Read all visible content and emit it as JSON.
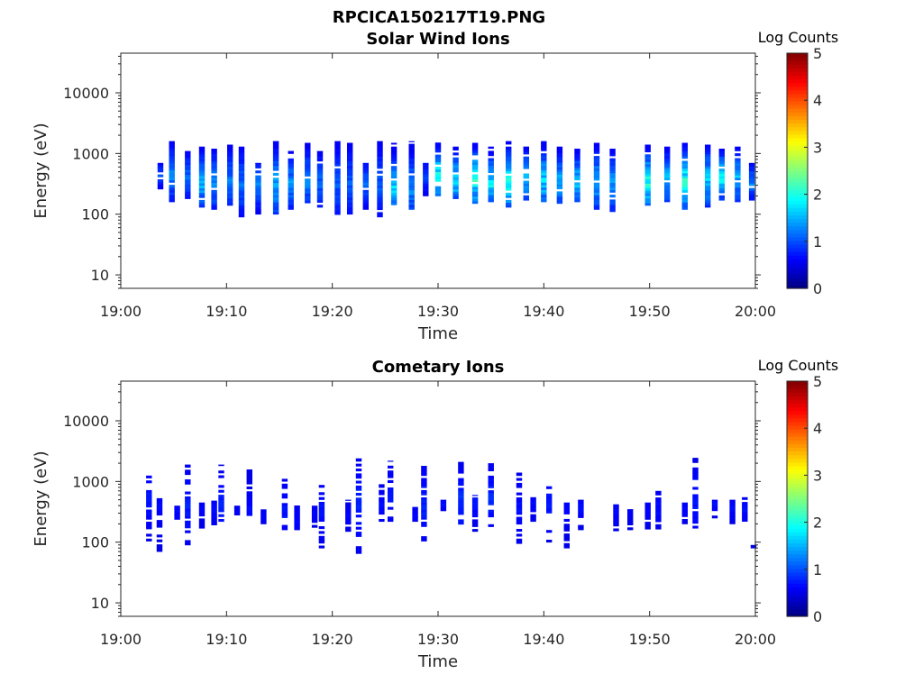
{
  "figure_title": "RPCICA150217T19.PNG",
  "chart_data": [
    {
      "type": "heatmap",
      "title": "Solar Wind Ions",
      "xlabel": "Time",
      "ylabel": "Energy (eV)",
      "x_scale": "time",
      "y_scale": "log",
      "xlim": [
        "19:00",
        "20:00"
      ],
      "ylim": [
        6,
        45000
      ],
      "x_ticks": [
        "19:00",
        "19:10",
        "19:20",
        "19:30",
        "19:40",
        "19:50",
        "20:00"
      ],
      "y_ticks": [
        10,
        100,
        1000,
        10000
      ],
      "y_tick_labels": [
        "10",
        "100",
        "1000",
        "10000"
      ],
      "colorbar": {
        "title": "Log Counts",
        "range": [
          0,
          5
        ],
        "ticks": [
          "0",
          "1",
          "2",
          "3",
          "4",
          "5"
        ],
        "colormap": "jet"
      },
      "scans": [
        {
          "time": "19:02:30",
          "emin": 480,
          "emax": 560,
          "peak": 420,
          "intensity": 0.1
        },
        {
          "time": "19:03:45",
          "emin": 260,
          "emax": 700,
          "peak": 420,
          "intensity": 0.5
        },
        {
          "time": "19:04:50",
          "emin": 160,
          "emax": 1600,
          "peak": 420,
          "intensity": 0.8
        },
        {
          "time": "19:06:20",
          "emin": 180,
          "emax": 1100,
          "peak": 400,
          "intensity": 0.7
        },
        {
          "time": "19:07:40",
          "emin": 130,
          "emax": 1300,
          "peak": 320,
          "intensity": 1.1
        },
        {
          "time": "19:08:50",
          "emin": 120,
          "emax": 1200,
          "peak": 320,
          "intensity": 0.9
        },
        {
          "time": "19:10:20",
          "emin": 140,
          "emax": 1400,
          "peak": 350,
          "intensity": 0.8
        },
        {
          "time": "19:11:25",
          "emin": 90,
          "emax": 1300,
          "peak": 300,
          "intensity": 0.7
        },
        {
          "time": "19:13:00",
          "emin": 100,
          "emax": 700,
          "peak": 300,
          "intensity": 0.8
        },
        {
          "time": "19:14:40",
          "emin": 100,
          "emax": 1600,
          "peak": 280,
          "intensity": 1.1
        },
        {
          "time": "19:16:05",
          "emin": 120,
          "emax": 1100,
          "peak": 300,
          "intensity": 0.9
        },
        {
          "time": "19:17:40",
          "emin": 140,
          "emax": 1500,
          "peak": 350,
          "intensity": 0.8
        },
        {
          "time": "19:18:50",
          "emin": 130,
          "emax": 1100,
          "peak": 320,
          "intensity": 0.7
        },
        {
          "time": "19:20:30",
          "emin": 90,
          "emax": 1600,
          "peak": 300,
          "intensity": 0.6
        },
        {
          "time": "19:21:40",
          "emin": 100,
          "emax": 1500,
          "peak": 300,
          "intensity": 0.6
        },
        {
          "time": "19:23:10",
          "emin": 120,
          "emax": 700,
          "peak": 320,
          "intensity": 0.7
        },
        {
          "time": "19:24:30",
          "emin": 90,
          "emax": 1600,
          "peak": 300,
          "intensity": 0.6
        },
        {
          "time": "19:25:50",
          "emin": 130,
          "emax": 1500,
          "peak": 260,
          "intensity": 1.2
        },
        {
          "time": "19:27:30",
          "emin": 120,
          "emax": 1600,
          "peak": 260,
          "intensity": 0.9
        },
        {
          "time": "19:28:50",
          "emin": 200,
          "emax": 700,
          "peak": 400,
          "intensity": 0.5
        },
        {
          "time": "19:30:00",
          "emin": 200,
          "emax": 1600,
          "peak": 420,
          "intensity": 1.6
        },
        {
          "time": "19:31:40",
          "emin": 180,
          "emax": 1300,
          "peak": 360,
          "intensity": 1.4
        },
        {
          "time": "19:33:30",
          "emin": 150,
          "emax": 1500,
          "peak": 350,
          "intensity": 1.6
        },
        {
          "time": "19:35:00",
          "emin": 160,
          "emax": 1300,
          "peak": 320,
          "intensity": 1.4
        },
        {
          "time": "19:36:40",
          "emin": 130,
          "emax": 1600,
          "peak": 320,
          "intensity": 1.5
        },
        {
          "time": "19:38:20",
          "emin": 170,
          "emax": 1300,
          "peak": 380,
          "intensity": 1.1
        },
        {
          "time": "19:40:00",
          "emin": 160,
          "emax": 1600,
          "peak": 350,
          "intensity": 1.3
        },
        {
          "time": "19:41:30",
          "emin": 150,
          "emax": 1300,
          "peak": 330,
          "intensity": 1.1
        },
        {
          "time": "19:43:10",
          "emin": 160,
          "emax": 1200,
          "peak": 330,
          "intensity": 1.2
        },
        {
          "time": "19:45:00",
          "emin": 120,
          "emax": 1500,
          "peak": 320,
          "intensity": 1.1
        },
        {
          "time": "19:46:30",
          "emin": 110,
          "emax": 1200,
          "peak": 300,
          "intensity": 1.0
        },
        {
          "time": "19:49:50",
          "emin": 140,
          "emax": 1400,
          "peak": 320,
          "intensity": 1.6
        },
        {
          "time": "19:51:40",
          "emin": 160,
          "emax": 1300,
          "peak": 350,
          "intensity": 1.1
        },
        {
          "time": "19:53:20",
          "emin": 120,
          "emax": 1500,
          "peak": 320,
          "intensity": 1.7
        },
        {
          "time": "19:55:30",
          "emin": 130,
          "emax": 1400,
          "peak": 350,
          "intensity": 1.2
        },
        {
          "time": "19:56:50",
          "emin": 170,
          "emax": 1200,
          "peak": 380,
          "intensity": 1.4
        },
        {
          "time": "19:58:20",
          "emin": 160,
          "emax": 1300,
          "peak": 380,
          "intensity": 1.1
        },
        {
          "time": "19:59:40",
          "emin": 170,
          "emax": 700,
          "peak": 320,
          "intensity": 0.8
        }
      ]
    },
    {
      "type": "heatmap",
      "title": "Cometary Ions",
      "xlabel": "Time",
      "ylabel": "Energy (eV)",
      "x_scale": "time",
      "y_scale": "log",
      "xlim": [
        "19:00",
        "20:00"
      ],
      "ylim": [
        6,
        45000
      ],
      "x_ticks": [
        "19:00",
        "19:10",
        "19:20",
        "19:30",
        "19:40",
        "19:50",
        "20:00"
      ],
      "y_ticks": [
        10,
        100,
        1000,
        10000
      ],
      "y_tick_labels": [
        "10",
        "100",
        "1000",
        "10000"
      ],
      "colorbar": {
        "title": "Log Counts",
        "range": [
          0,
          5
        ],
        "ticks": [
          "0",
          "1",
          "2",
          "3",
          "4",
          "5"
        ],
        "colormap": "jet"
      },
      "scans": [
        {
          "time": "19:02:40",
          "emin": 95,
          "emax": 1400,
          "peak": 500,
          "intensity": 0.25
        },
        {
          "time": "19:03:40",
          "emin": 70,
          "emax": 550,
          "peak": 400,
          "intensity": 0.15
        },
        {
          "time": "19:05:20",
          "emin": 150,
          "emax": 400,
          "peak": 300,
          "intensity": 0.15
        },
        {
          "time": "19:06:20",
          "emin": 90,
          "emax": 1900,
          "peak": 400,
          "intensity": 0.3
        },
        {
          "time": "19:07:40",
          "emin": 170,
          "emax": 450,
          "peak": 350,
          "intensity": 0.15
        },
        {
          "time": "19:08:50",
          "emin": 160,
          "emax": 600,
          "peak": 350,
          "intensity": 0.2
        },
        {
          "time": "19:09:30",
          "emin": 200,
          "emax": 1900,
          "peak": 400,
          "intensity": 0.3
        },
        {
          "time": "19:11:00",
          "emin": 280,
          "emax": 400,
          "peak": 330,
          "intensity": 0.1
        },
        {
          "time": "19:12:10",
          "emin": 250,
          "emax": 1600,
          "peak": 330,
          "intensity": 0.2
        },
        {
          "time": "19:13:30",
          "emin": 200,
          "emax": 350,
          "peak": 250,
          "intensity": 0.15
        },
        {
          "time": "19:15:30",
          "emin": 160,
          "emax": 1800,
          "peak": 330,
          "intensity": 0.25
        },
        {
          "time": "19:16:40",
          "emin": 160,
          "emax": 500,
          "peak": 220,
          "intensity": 0.15
        },
        {
          "time": "19:18:20",
          "emin": 160,
          "emax": 400,
          "peak": 300,
          "intensity": 0.15
        },
        {
          "time": "19:19:00",
          "emin": 80,
          "emax": 1100,
          "peak": 300,
          "intensity": 0.25
        },
        {
          "time": "19:21:30",
          "emin": 150,
          "emax": 500,
          "peak": 250,
          "intensity": 0.15
        },
        {
          "time": "19:22:30",
          "emin": 65,
          "emax": 2400,
          "peak": 400,
          "intensity": 0.3
        },
        {
          "time": "19:24:40",
          "emin": 200,
          "emax": 900,
          "peak": 400,
          "intensity": 0.2
        },
        {
          "time": "19:25:30",
          "emin": 200,
          "emax": 2200,
          "peak": 600,
          "intensity": 0.25
        },
        {
          "time": "19:27:50",
          "emin": 200,
          "emax": 400,
          "peak": 280,
          "intensity": 0.15
        },
        {
          "time": "19:28:40",
          "emin": 95,
          "emax": 2300,
          "peak": 400,
          "intensity": 0.3
        },
        {
          "time": "19:30:30",
          "emin": 300,
          "emax": 500,
          "peak": 400,
          "intensity": 0.2
        },
        {
          "time": "19:32:10",
          "emin": 180,
          "emax": 2100,
          "peak": 450,
          "intensity": 0.4
        },
        {
          "time": "19:33:30",
          "emin": 150,
          "emax": 600,
          "peak": 400,
          "intensity": 0.25
        },
        {
          "time": "19:35:00",
          "emin": 180,
          "emax": 2000,
          "peak": 500,
          "intensity": 0.35
        },
        {
          "time": "19:37:40",
          "emin": 95,
          "emax": 1400,
          "peak": 350,
          "intensity": 0.2
        },
        {
          "time": "19:39:00",
          "emin": 200,
          "emax": 600,
          "peak": 400,
          "intensity": 0.15
        },
        {
          "time": "19:40:30",
          "emin": 100,
          "emax": 1300,
          "peak": 400,
          "intensity": 0.25
        },
        {
          "time": "19:42:10",
          "emin": 80,
          "emax": 450,
          "peak": 350,
          "intensity": 0.15
        },
        {
          "time": "19:43:30",
          "emin": 160,
          "emax": 500,
          "peak": 350,
          "intensity": 0.2
        },
        {
          "time": "19:46:50",
          "emin": 140,
          "emax": 420,
          "peak": 300,
          "intensity": 0.15
        },
        {
          "time": "19:48:10",
          "emin": 160,
          "emax": 350,
          "peak": 300,
          "intensity": 0.1
        },
        {
          "time": "19:49:50",
          "emin": 150,
          "emax": 450,
          "peak": 300,
          "intensity": 0.15
        },
        {
          "time": "19:50:50",
          "emin": 150,
          "emax": 700,
          "peak": 350,
          "intensity": 0.2
        },
        {
          "time": "19:53:20",
          "emin": 200,
          "emax": 450,
          "peak": 330,
          "intensity": 0.15
        },
        {
          "time": "19:54:20",
          "emin": 170,
          "emax": 2800,
          "peak": 450,
          "intensity": 0.25
        },
        {
          "time": "19:56:10",
          "emin": 250,
          "emax": 500,
          "peak": 400,
          "intensity": 0.2
        },
        {
          "time": "19:57:50",
          "emin": 200,
          "emax": 500,
          "peak": 350,
          "intensity": 0.2
        },
        {
          "time": "19:59:00",
          "emin": 220,
          "emax": 550,
          "peak": 330,
          "intensity": 0.2
        },
        {
          "time": "19:59:50",
          "emin": 80,
          "emax": 90,
          "peak": 85,
          "intensity": 0.1
        }
      ]
    }
  ]
}
